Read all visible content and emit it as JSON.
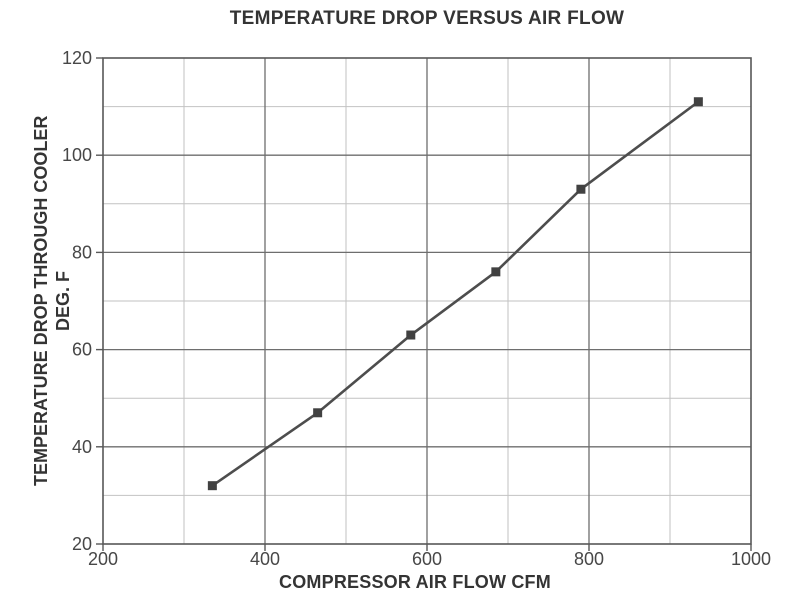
{
  "chart_data": {
    "type": "line",
    "title": "TEMPERATURE DROP VERSUS AIR FLOW",
    "xlabel": "COMPRESSOR AIR FLOW CFM",
    "ylabel": "TEMPERATURE DROP THROUGH COOLER",
    "ylabel_line2": "DEG. F",
    "xlim": [
      200,
      1000
    ],
    "ylim": [
      20,
      120
    ],
    "x_ticks": [
      200,
      400,
      600,
      800,
      1000
    ],
    "y_ticks": [
      20,
      40,
      60,
      80,
      100,
      120
    ],
    "x_minor_step": 100,
    "y_minor_step": 10,
    "grid": "major-dark-minor-light",
    "legend": "none",
    "series": [
      {
        "name": "temperature-drop-through-cooler",
        "marker": "filled-square",
        "x": [
          335,
          465,
          580,
          685,
          790,
          935
        ],
        "y": [
          32,
          47,
          63,
          76,
          93,
          111
        ]
      }
    ],
    "colors": {
      "background": "#ffffff",
      "axis": "#585858",
      "major_grid": "#6e6e6e",
      "minor_grid": "#c2c2c2",
      "line": "#4d4d4d",
      "marker": "#414141",
      "text": "#343434",
      "tick_text": "#474747"
    }
  }
}
